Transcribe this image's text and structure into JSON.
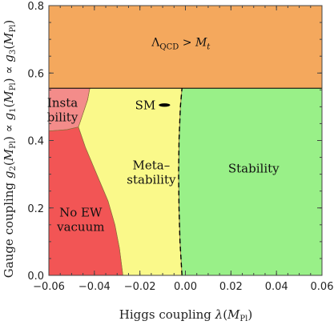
{
  "chart_data": {
    "type": "area",
    "xlabel": {
      "main": "Higgs coupling ",
      "sym": "λ",
      "open": "(",
      "arg": "M",
      "sub": "Pl",
      "close": ")"
    },
    "ylabel": {
      "p1": "Gauge coupling ",
      "g2": "g",
      "g2sub": "2",
      "p2": "(",
      "m1": "M",
      "m1sub": "Pl",
      "p3": ") ∝ ",
      "g1": "g",
      "g1sub": "1",
      "p4": "(",
      "m2": "M",
      "m2sub": "Pl",
      "p5": ") ∝ ",
      "g3": "g",
      "g3sub": "3",
      "p6": "(",
      "m3": "M",
      "m3sub": "Pl",
      "p7": ")"
    },
    "xlim": [
      -0.06,
      0.06
    ],
    "ylim": [
      0.0,
      0.8
    ],
    "x_ticks": [
      -0.06,
      -0.04,
      -0.02,
      0.0,
      0.02,
      0.04,
      0.06
    ],
    "x_tick_labels": [
      "−0.06",
      "−0.04",
      "−0.02",
      "0.00",
      "0.02",
      "0.04",
      "0.06"
    ],
    "y_ticks": [
      0.0,
      0.2,
      0.4,
      0.6,
      0.8
    ],
    "y_tick_labels": [
      "0.0",
      "0.2",
      "0.4",
      "0.6",
      "0.8"
    ],
    "regions": [
      {
        "name": "lambda-qcd-region",
        "color": "#F4A85D",
        "label": {
          "lambda": "Λ",
          "qcd": "QCD",
          "rel": " > ",
          "m": "M",
          "t": "t"
        },
        "label_at": [
          -0.002,
          0.69
        ],
        "polygon": [
          [
            -0.06,
            0.555
          ],
          [
            0.06,
            0.555
          ],
          [
            0.06,
            0.8
          ],
          [
            -0.06,
            0.8
          ]
        ]
      },
      {
        "name": "stability-region",
        "color": "#99F088",
        "label": "Stability",
        "label_at": [
          0.03,
          0.305
        ],
        "polygon": [
          [
            -0.0015,
            0.0
          ],
          [
            0.06,
            0.0
          ],
          [
            0.06,
            0.555
          ],
          [
            -0.0015,
            0.555
          ],
          [
            -0.0022,
            0.5
          ],
          [
            -0.0028,
            0.4
          ],
          [
            -0.003,
            0.3
          ],
          [
            -0.0028,
            0.2
          ],
          [
            -0.0024,
            0.1
          ]
        ]
      },
      {
        "name": "metastability-region",
        "color": "#FAF98A",
        "label": [
          "Meta–",
          "stability"
        ],
        "label_at": [
          -0.015,
          0.305
        ],
        "polygon": [
          [
            -0.0275,
            0.0
          ],
          [
            -0.0015,
            0.0
          ],
          [
            -0.0024,
            0.1
          ],
          [
            -0.0028,
            0.2
          ],
          [
            -0.003,
            0.3
          ],
          [
            -0.0028,
            0.4
          ],
          [
            -0.0022,
            0.5
          ],
          [
            -0.0015,
            0.555
          ],
          [
            -0.042,
            0.555
          ],
          [
            -0.043,
            0.52
          ],
          [
            -0.045,
            0.48
          ],
          [
            -0.047,
            0.44
          ],
          [
            -0.044,
            0.38
          ],
          [
            -0.039,
            0.3
          ],
          [
            -0.034,
            0.22
          ],
          [
            -0.031,
            0.15
          ],
          [
            -0.029,
            0.08
          ]
        ]
      },
      {
        "name": "instability-region",
        "color": "#F38C8A",
        "label": [
          "Insta",
          "bility"
        ],
        "label_at": [
          -0.054,
          0.49
        ],
        "polygon": [
          [
            -0.06,
            0.555
          ],
          [
            -0.042,
            0.555
          ],
          [
            -0.043,
            0.52
          ],
          [
            -0.045,
            0.48
          ],
          [
            -0.047,
            0.44
          ],
          [
            -0.052,
            0.432
          ],
          [
            -0.06,
            0.428
          ]
        ]
      },
      {
        "name": "no-ew-vacuum-region",
        "color": "#F25555",
        "label": [
          "No EW",
          "vacuum"
        ],
        "label_at": [
          -0.046,
          0.165
        ],
        "polygon": [
          [
            -0.06,
            0.0
          ],
          [
            -0.0275,
            0.0
          ],
          [
            -0.029,
            0.08
          ],
          [
            -0.031,
            0.15
          ],
          [
            -0.034,
            0.22
          ],
          [
            -0.039,
            0.3
          ],
          [
            -0.044,
            0.38
          ],
          [
            -0.047,
            0.44
          ],
          [
            -0.052,
            0.432
          ],
          [
            -0.06,
            0.428
          ]
        ]
      }
    ],
    "sm_marker": {
      "label": "SM",
      "x": -0.0092,
      "y": 0.505,
      "x_halfwidth": 0.0025,
      "y_halfheight": 0.005,
      "color": "#000000"
    },
    "stability_boundary": {
      "style": "dashed",
      "color": "#000000",
      "points": [
        [
          -0.0015,
          0.0
        ],
        [
          -0.0024,
          0.1
        ],
        [
          -0.0028,
          0.2
        ],
        [
          -0.003,
          0.3
        ],
        [
          -0.0028,
          0.4
        ],
        [
          -0.0022,
          0.5
        ],
        [
          -0.0015,
          0.555
        ]
      ]
    },
    "grid": false
  }
}
